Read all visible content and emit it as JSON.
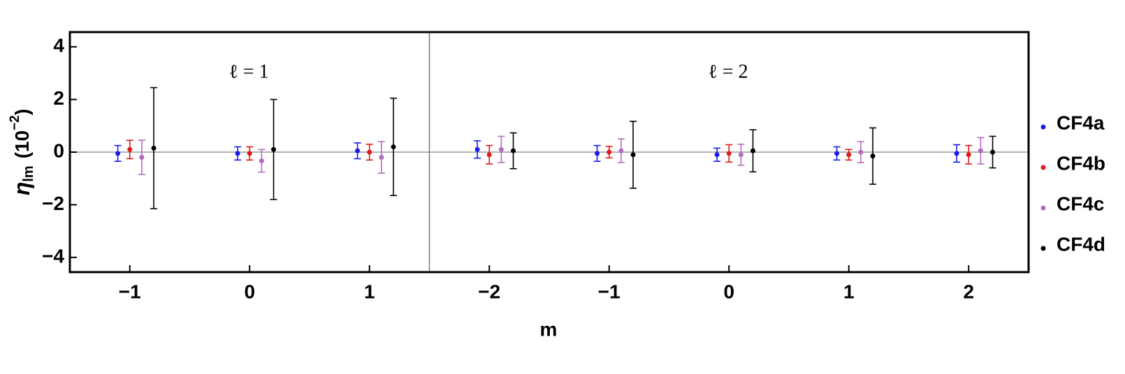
{
  "chart_data": {
    "type": "errorbar",
    "x_label": "m",
    "y_label_parts": [
      "η",
      "lm",
      "(10",
      "−2",
      ")"
    ],
    "annotations": [
      "ℓ = 1",
      "ℓ = 2"
    ],
    "categories": [
      "−1",
      "0",
      "1",
      "−2",
      "−1",
      "0",
      "1",
      "2"
    ],
    "ylim": [
      -4.56,
      4.56
    ],
    "yticks": [
      {
        "value": -4,
        "label": "−4"
      },
      {
        "value": -2,
        "label": "−2"
      },
      0,
      2,
      4
    ],
    "legend": "right",
    "series": [
      {
        "name": "CF4a",
        "color": "#1a1aee",
        "values": [
          -0.05,
          -0.05,
          0.05,
          0.1,
          -0.05,
          -0.1,
          -0.05,
          -0.05
        ],
        "errors": [
          0.3,
          0.25,
          0.3,
          0.33,
          0.3,
          0.25,
          0.25,
          0.33
        ]
      },
      {
        "name": "CF4b",
        "color": "#e01a1a",
        "values": [
          0.1,
          -0.05,
          0,
          -0.1,
          0,
          -0.05,
          -0.1,
          -0.1
        ],
        "errors": [
          0.35,
          0.25,
          0.3,
          0.35,
          0.22,
          0.33,
          0.2,
          0.35
        ]
      },
      {
        "name": "CF4c",
        "color": "#b36bbf",
        "values": [
          -0.2,
          -0.33,
          -0.2,
          0.1,
          0.05,
          -0.1,
          0,
          0.05
        ],
        "errors": [
          0.65,
          0.43,
          0.6,
          0.5,
          0.45,
          0.4,
          0.4,
          0.5
        ]
      },
      {
        "name": "CF4d",
        "color": "#000000",
        "values": [
          0.15,
          0.1,
          0.2,
          0.05,
          -0.1,
          0.05,
          -0.15,
          0
        ],
        "errors": [
          2.3,
          1.9,
          1.85,
          0.68,
          1.27,
          0.8,
          1.07,
          0.6
        ]
      }
    ]
  }
}
